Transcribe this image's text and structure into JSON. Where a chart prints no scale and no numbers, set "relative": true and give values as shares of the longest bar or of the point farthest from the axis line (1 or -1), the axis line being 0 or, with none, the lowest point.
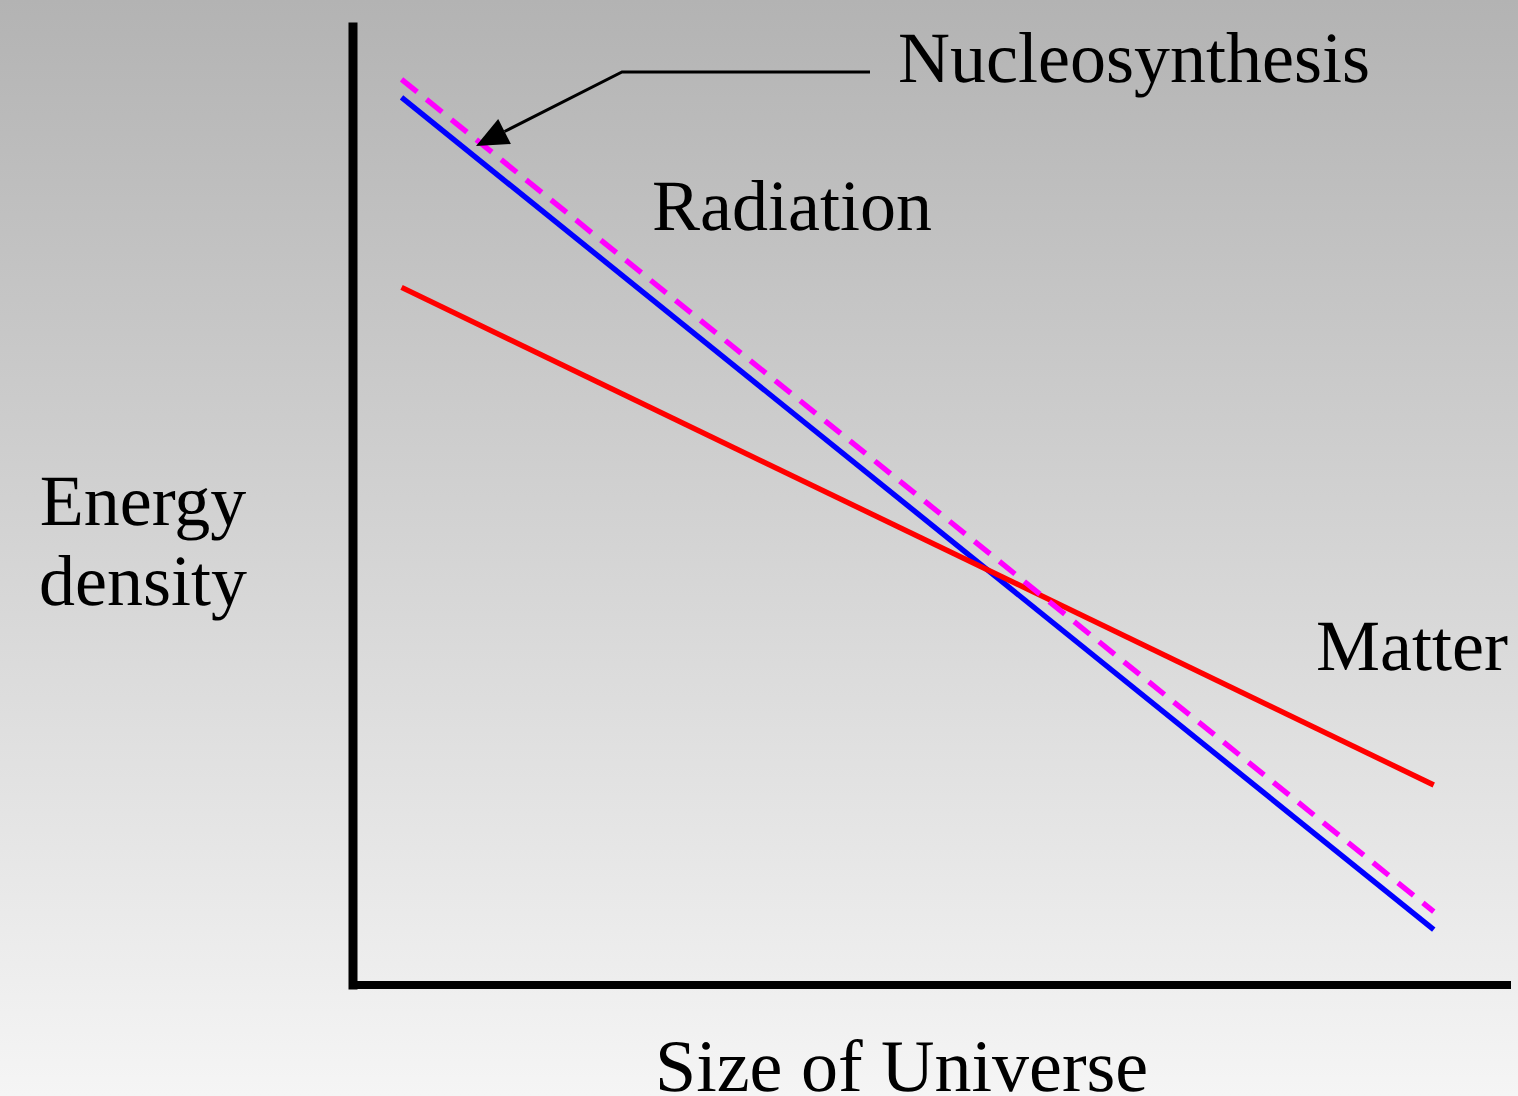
{
  "chart_data": {
    "type": "line",
    "relative": true,
    "xlabel": "Size of Universe",
    "ylabel": "Energy density",
    "categories": [
      null,
      null
    ],
    "series": [
      {
        "name": "Radiation",
        "color": "#0000ff",
        "values": [
          0.98,
          0.06
        ]
      },
      {
        "name": "Matter",
        "color": "#ff0000",
        "values": [
          0.77,
          0.22
        ]
      },
      {
        "color": "#ff00ff",
        "values": [
          1,
          0.08
        ],
        "line_style": "dashed"
      }
    ],
    "annotations": [
      "Nucleosynthesis"
    ]
  }
}
